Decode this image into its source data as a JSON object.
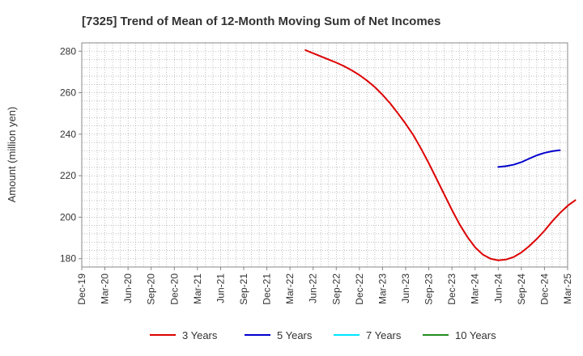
{
  "chart_data": {
    "type": "line",
    "title": "[7325]  Trend of Mean of 12-Month Moving Sum of Net Incomes",
    "xlabel": "",
    "ylabel": "Amount (million yen)",
    "ylim": [
      176,
      284
    ],
    "yticks": [
      180,
      200,
      220,
      240,
      260,
      280
    ],
    "grid": true,
    "legend_position": "bottom",
    "x_ticks": [
      "Dec-19",
      "Mar-20",
      "Jun-20",
      "Sep-20",
      "Dec-20",
      "Mar-21",
      "Jun-21",
      "Sep-21",
      "Dec-21",
      "Mar-22",
      "Jun-22",
      "Sep-22",
      "Dec-22",
      "Mar-23",
      "Jun-23",
      "Sep-23",
      "Dec-23",
      "Mar-24",
      "Jun-24",
      "Sep-24",
      "Dec-24",
      "Mar-25"
    ],
    "series": [
      {
        "name": "3 Years",
        "color": "#dd0000",
        "points": [
          [
            "May-22",
            280.5
          ],
          [
            "Jun-22",
            279.0
          ],
          [
            "Jul-22",
            277.5
          ],
          [
            "Aug-22",
            276.0
          ],
          [
            "Sep-22",
            274.5
          ],
          [
            "Oct-22",
            272.8
          ],
          [
            "Nov-22",
            270.8
          ],
          [
            "Dec-22",
            268.5
          ],
          [
            "Jan-23",
            265.8
          ],
          [
            "Feb-23",
            262.7
          ],
          [
            "Mar-23",
            259.0
          ],
          [
            "Apr-23",
            254.8
          ],
          [
            "May-23",
            250.0
          ],
          [
            "Jun-23",
            245.0
          ],
          [
            "Jul-23",
            239.5
          ],
          [
            "Aug-23",
            233.0
          ],
          [
            "Sep-23",
            226.0
          ],
          [
            "Oct-23",
            218.5
          ],
          [
            "Nov-23",
            211.0
          ],
          [
            "Dec-23",
            203.5
          ],
          [
            "Jan-24",
            196.5
          ],
          [
            "Feb-24",
            190.5
          ],
          [
            "Mar-24",
            185.5
          ],
          [
            "Apr-24",
            182.0
          ],
          [
            "May-24",
            180.0
          ],
          [
            "Jun-24",
            179.2
          ],
          [
            "Jul-24",
            179.6
          ],
          [
            "Aug-24",
            180.8
          ],
          [
            "Sep-24",
            183.0
          ],
          [
            "Oct-24",
            186.0
          ],
          [
            "Nov-24",
            189.5
          ],
          [
            "Dec-24",
            193.5
          ],
          [
            "Jan-25",
            198.0
          ],
          [
            "Feb-25",
            202.0
          ],
          [
            "Mar-25",
            205.5
          ],
          [
            "Apr-25",
            208.2
          ]
        ]
      },
      {
        "name": "5 Years",
        "color": "#0000cc",
        "points": [
          [
            "Jun-24",
            224.2
          ],
          [
            "Jul-24",
            224.6
          ],
          [
            "Aug-24",
            225.3
          ],
          [
            "Sep-24",
            226.5
          ],
          [
            "Oct-24",
            228.2
          ],
          [
            "Nov-24",
            229.8
          ],
          [
            "Dec-24",
            231.0
          ],
          [
            "Jan-25",
            231.8
          ],
          [
            "Feb-25",
            232.3
          ]
        ]
      },
      {
        "name": "7 Years",
        "color": "#00e5ff",
        "points": []
      },
      {
        "name": "10 Years",
        "color": "#228b22",
        "points": []
      }
    ]
  }
}
